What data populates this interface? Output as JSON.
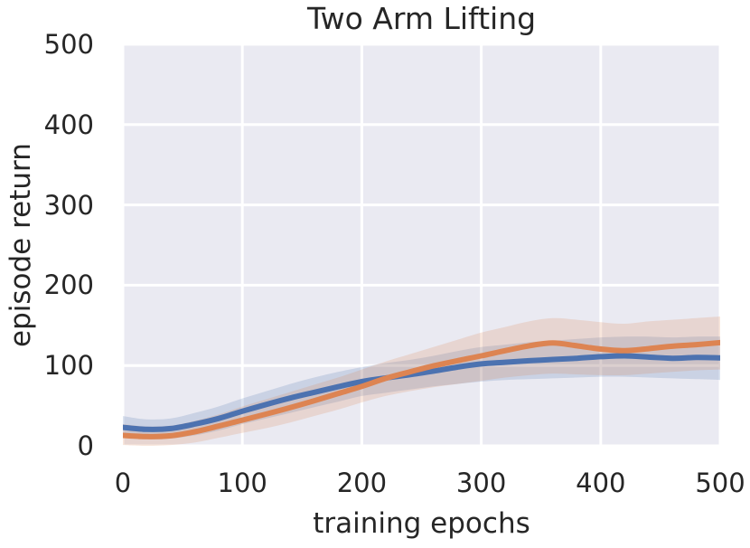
{
  "chart_data": {
    "type": "line",
    "title": "Two Arm Lifting",
    "xlabel": "training epochs",
    "ylabel": "episode return",
    "xlim": [
      0,
      500
    ],
    "ylim": [
      0,
      500
    ],
    "xticks": [
      0,
      100,
      200,
      300,
      400,
      500
    ],
    "yticks": [
      0,
      100,
      200,
      300,
      400,
      500
    ],
    "grid": true,
    "legend_position": "none",
    "background_color": "#EAEAF2",
    "grid_color": "#FFFFFF",
    "text_color": "#262626",
    "band_alpha": 0.2,
    "line_width": 6,
    "x": [
      0,
      20,
      40,
      60,
      80,
      100,
      120,
      140,
      160,
      180,
      200,
      220,
      240,
      260,
      280,
      300,
      320,
      340,
      360,
      380,
      400,
      420,
      440,
      460,
      480,
      500
    ],
    "series": [
      {
        "name": "blue-series",
        "color": "#4C72B0",
        "values": [
          23,
          20.5,
          21.5,
          27,
          34,
          43,
          51.5,
          59.5,
          66.5,
          73.5,
          80,
          84.5,
          88.5,
          93,
          98,
          102,
          104,
          106,
          107.5,
          109,
          111,
          112,
          110.5,
          109,
          110,
          109.5
        ],
        "band_low": [
          10,
          8,
          9,
          13,
          19,
          27,
          34,
          41,
          48,
          55,
          62,
          66,
          70,
          74,
          77,
          80,
          82,
          83,
          84,
          85,
          86,
          86,
          85,
          84,
          83,
          82
        ],
        "band_high": [
          37,
          33,
          34,
          41,
          49,
          59,
          68,
          77,
          85,
          92,
          98,
          103,
          107,
          112,
          118,
          123,
          126,
          129,
          131,
          133,
          135,
          136,
          136,
          135,
          136,
          136
        ]
      },
      {
        "name": "orange-series",
        "color": "#DD8452",
        "values": [
          13,
          11.5,
          12.5,
          17.5,
          24.5,
          32,
          39.5,
          47.5,
          56,
          65,
          74,
          84,
          92,
          99.5,
          106,
          112,
          118.5,
          124.5,
          128,
          124.5,
          120.5,
          118.5,
          121,
          124,
          126,
          128.5
        ],
        "band_low": [
          1,
          0,
          1,
          4,
          10,
          16,
          22,
          29,
          37,
          45,
          54,
          62,
          68,
          73,
          77,
          81,
          85,
          88,
          90,
          89,
          88,
          88,
          90,
          92,
          94,
          95
        ],
        "band_high": [
          27,
          24,
          25,
          31,
          39,
          49,
          58,
          67,
          76,
          85,
          95,
          105,
          114,
          123,
          132,
          141,
          148,
          155,
          159,
          157,
          154,
          152,
          155,
          157,
          159,
          161
        ]
      }
    ]
  }
}
